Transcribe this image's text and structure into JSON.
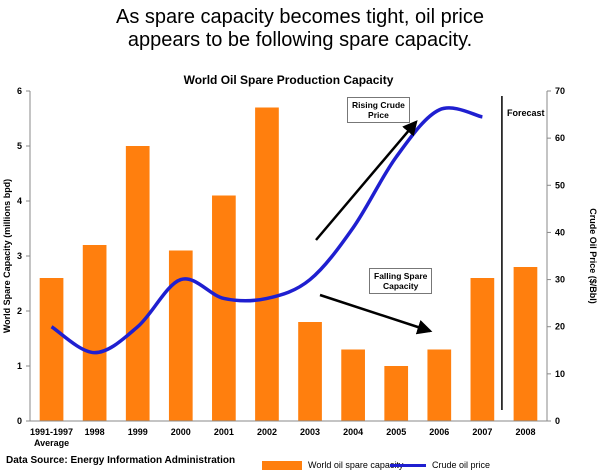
{
  "headline": {
    "line1": "As spare capacity becomes tight, oil price",
    "line2": "appears to be following spare capacity."
  },
  "source": "Data Source: Energy Information Administration",
  "annotations": {
    "rising": [
      "Rising Crude",
      "Price"
    ],
    "falling": [
      "Falling Spare",
      "Capacity"
    ],
    "forecast": "Forecast"
  },
  "colors": {
    "bars": "#ff7f0e",
    "line": "#1f1fd0",
    "arrows": "#000000"
  },
  "chart_data": {
    "type": "bar",
    "title": "World Oil Spare Production Capacity",
    "categories": [
      "1991-1997\nAverage",
      "1998",
      "1999",
      "2000",
      "2001",
      "2002",
      "2003",
      "2004",
      "2005",
      "2006",
      "2007",
      "2008"
    ],
    "ylabel": "World Spare Capacity (millions bpd)",
    "y2label": "Crude Oil Price ($/Bbl)",
    "ylim": [
      0,
      6
    ],
    "y2lim": [
      0,
      70
    ],
    "yticks": [
      0,
      1,
      2,
      3,
      4,
      5,
      6
    ],
    "y2ticks": [
      0,
      10,
      20,
      30,
      40,
      50,
      60,
      70
    ],
    "grid": false,
    "legend_position": "bottom",
    "series": [
      {
        "name": "World oil spare capacity",
        "type": "bar",
        "axis": "left",
        "values": [
          2.6,
          3.2,
          5.0,
          3.1,
          4.1,
          5.7,
          1.8,
          1.3,
          1.0,
          1.3,
          2.6,
          2.8
        ]
      },
      {
        "name": "Crude oil price",
        "type": "line",
        "axis": "right",
        "values": [
          20,
          14.5,
          20,
          30,
          26,
          26,
          30,
          41,
          56,
          66,
          64.5,
          null
        ]
      }
    ]
  }
}
